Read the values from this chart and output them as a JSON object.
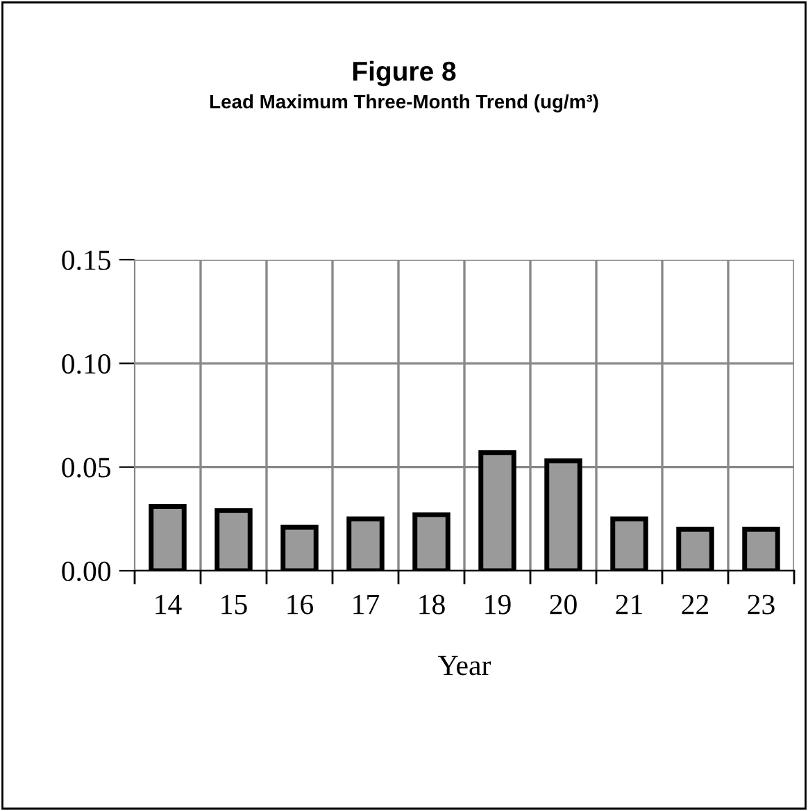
{
  "chart_data": {
    "type": "bar",
    "title": "Figure 8",
    "subtitle": "Lead Maximum Three-Month Trend (ug/m³)",
    "xlabel": "Year",
    "categories": [
      "14",
      "15",
      "16",
      "17",
      "18",
      "19",
      "20",
      "21",
      "22",
      "23"
    ],
    "values": [
      0.031,
      0.029,
      0.021,
      0.025,
      0.027,
      0.057,
      0.053,
      0.025,
      0.02,
      0.02
    ],
    "color": "#9a9a9a",
    "ylim": [
      0,
      0.15
    ],
    "yticks": [
      {
        "value": 0,
        "label": "0.00"
      },
      {
        "value": 0.05,
        "label": "0.05"
      },
      {
        "value": 0.1,
        "label": "0.10"
      },
      {
        "value": 0.15,
        "label": "0.15"
      }
    ],
    "grid": true
  }
}
